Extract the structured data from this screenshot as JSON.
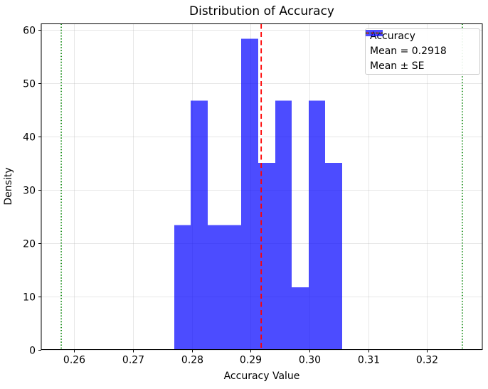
{
  "chart_data": {
    "type": "bar",
    "variant": "histogram-density",
    "title": "Distribution of Accuracy",
    "xlabel": "Accuracy Value",
    "ylabel": "Density",
    "xlim": [
      0.2544,
      0.3294
    ],
    "ylim": [
      0,
      61.1
    ],
    "grid": true,
    "legend_position": "upper right",
    "xticks": {
      "values": [
        0.26,
        0.27,
        0.28,
        0.29,
        0.3,
        0.31,
        0.32
      ],
      "labels": [
        "0.26",
        "0.27",
        "0.28",
        "0.29",
        "0.30",
        "0.31",
        "0.32"
      ]
    },
    "yticks": {
      "values": [
        0,
        10,
        20,
        30,
        40,
        50,
        60
      ],
      "labels": [
        "0",
        "10",
        "20",
        "30",
        "40",
        "50",
        "60"
      ]
    },
    "histogram": {
      "label": "Accuracy",
      "color": "#0000ff",
      "alpha": 0.7,
      "bin_start": 0.277,
      "bin_width": 0.002857,
      "counts": [
        2,
        4,
        2,
        2,
        5,
        3,
        4,
        1,
        4,
        3
      ],
      "densities": [
        23.33,
        46.67,
        23.33,
        23.33,
        58.33,
        35.0,
        46.67,
        11.67,
        46.67,
        35.0
      ]
    },
    "mean_line": {
      "x": 0.2918,
      "color": "#ff0000",
      "style": "dashed",
      "label": "Mean = 0.2918"
    },
    "se_lines": {
      "xs": [
        0.2578,
        0.326
      ],
      "color": "#008000",
      "style": "dotted",
      "label": "Mean ± SE"
    },
    "grid_color": "#b0b0b0",
    "grid_alpha": 0.3
  }
}
